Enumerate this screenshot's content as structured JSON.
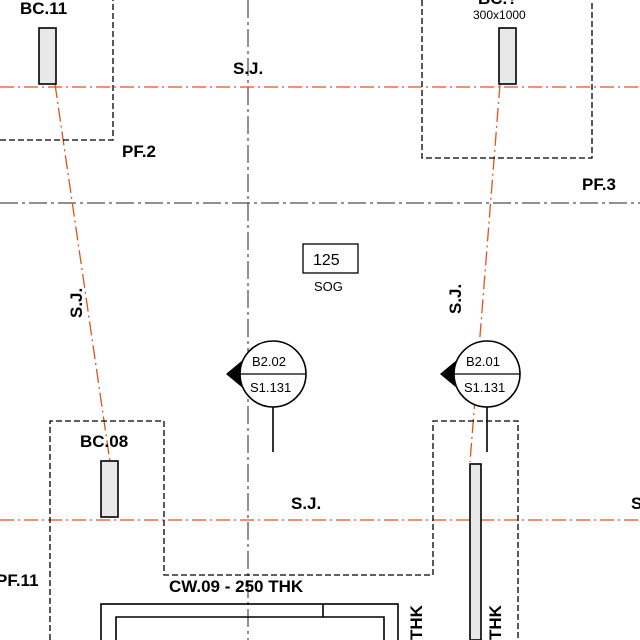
{
  "drawing": {
    "labels": {
      "bc11": "BC.11",
      "bc_top_right": "BC.?",
      "bc_top_right_size": "300x1000",
      "sj_top": "S.J.",
      "pf2": "PF.2",
      "pf3": "PF.3",
      "slab_value": "125",
      "slab_type": "SOG",
      "sj_left": "S.J.",
      "sj_right": "S.J.",
      "bc08": "BC.08",
      "sj_bottom": "S.J.",
      "sj_bottom_right": "S",
      "pf11": "PF.11",
      "cw09": "CW.09 - 250 THK",
      "thk_left": "THK",
      "thk_right": "THK"
    },
    "section_markers": [
      {
        "id": "B2.02",
        "sheet": "S1.131"
      },
      {
        "id": "B2.01",
        "sheet": "S1.131"
      }
    ],
    "colors": {
      "line": "#000000",
      "column_fill": "#e8e8e8",
      "sawcut": "#e0541c",
      "grid": "#222222"
    }
  }
}
